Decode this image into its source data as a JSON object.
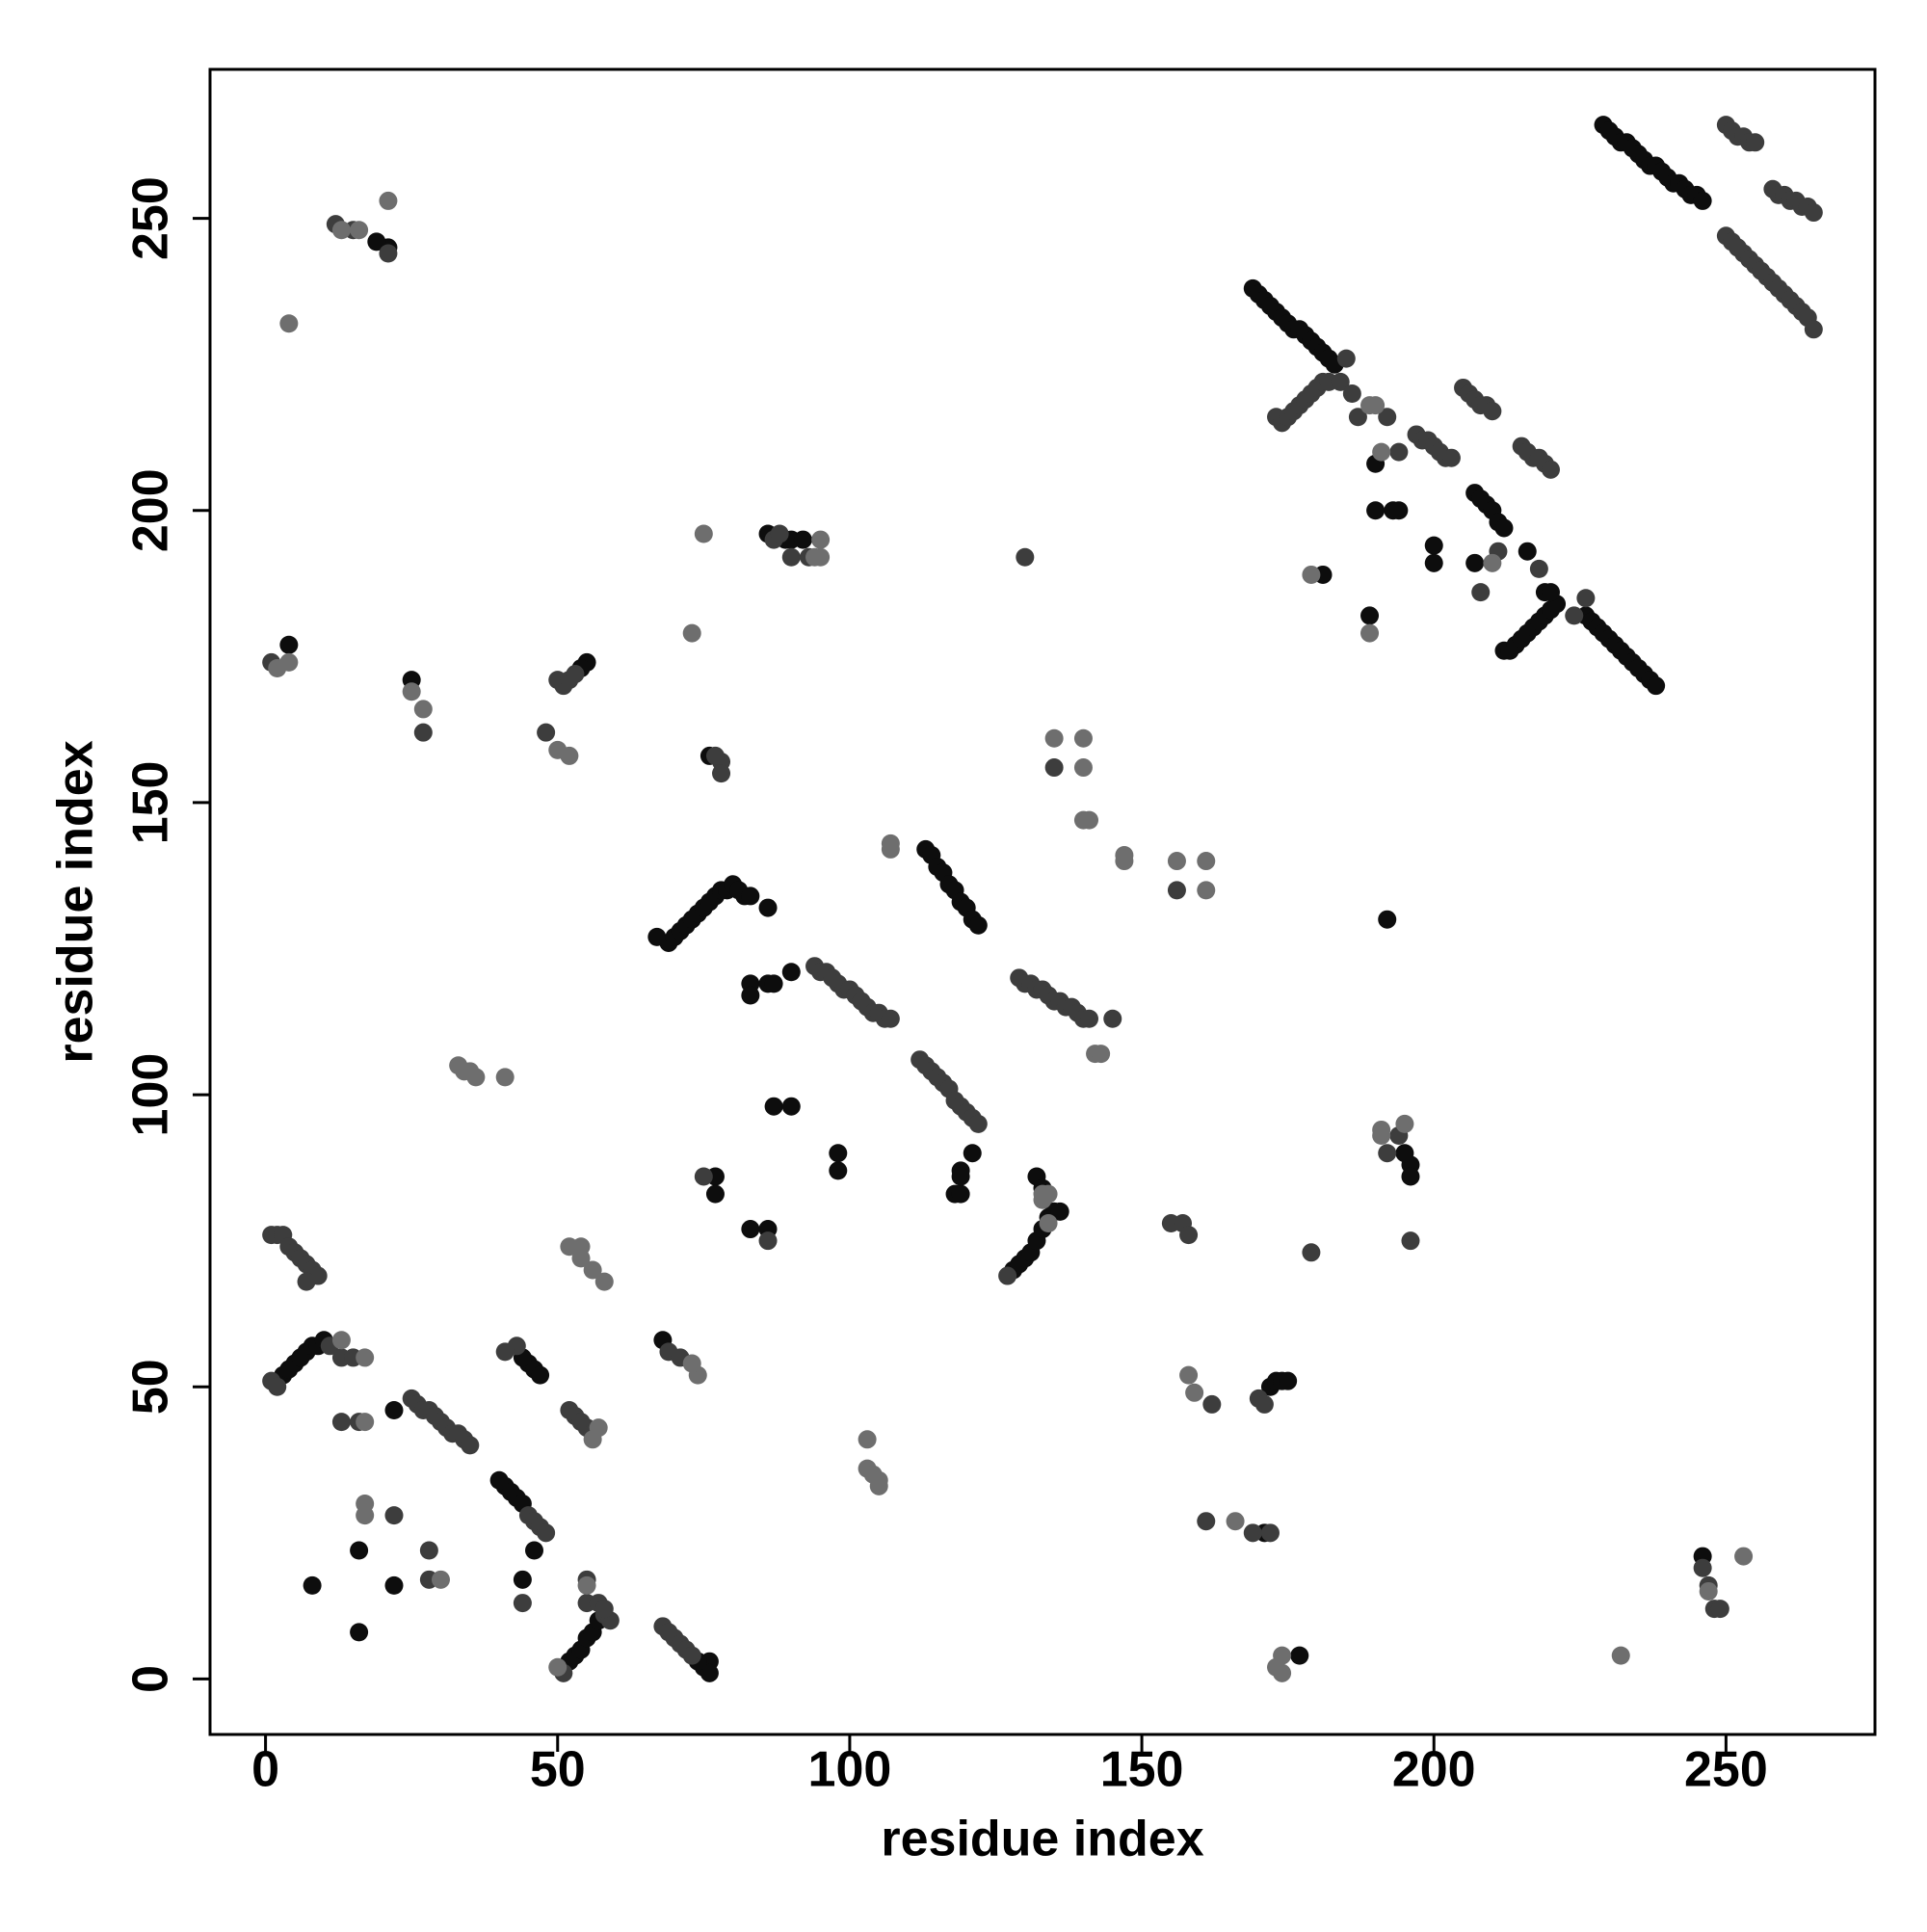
{
  "chart_data": {
    "type": "scatter",
    "x_label": "residue index",
    "y_label": "residue index",
    "xlim": [
      -9.5,
      275.5
    ],
    "ylim": [
      -9.5,
      275.5
    ],
    "xticks": [
      0,
      50,
      100,
      150,
      200,
      250
    ],
    "yticks": [
      0,
      50,
      100,
      150,
      200,
      250
    ],
    "grid": false,
    "series": [
      {
        "color": "#0d0d0d",
        "x": [
          229,
          230,
          231,
          232,
          233,
          234,
          235,
          236,
          237,
          238,
          239,
          240,
          241,
          242,
          243,
          244,
          245,
          246,
          169,
          170,
          171,
          172,
          173,
          174,
          175,
          176,
          177,
          178,
          179,
          180,
          181,
          182,
          183,
          226,
          227,
          228,
          229,
          230,
          231,
          232,
          233,
          234,
          235,
          236,
          237,
          238,
          207,
          208,
          209,
          210,
          211,
          212,
          212,
          213,
          214,
          215,
          216,
          217,
          218,
          219,
          220,
          221,
          190,
          190,
          193,
          194,
          200,
          200,
          207,
          216,
          219,
          220,
          181,
          189,
          192,
          67,
          69,
          70,
          71,
          72,
          73,
          74,
          75,
          76,
          77,
          78,
          79,
          80,
          81,
          82,
          83,
          86,
          83,
          83,
          86,
          87,
          90,
          113,
          114,
          115,
          116,
          117,
          118,
          119,
          120,
          121,
          122,
          118,
          119,
          119,
          119,
          121,
          98,
          98,
          87,
          90,
          77,
          77,
          86,
          83,
          128,
          129,
          130,
          131,
          132,
          133,
          134,
          135,
          132,
          133,
          86,
          89,
          90,
          92,
          76,
          55,
          54,
          4,
          21,
          19,
          25,
          3,
          4,
          5,
          6,
          7,
          8,
          9,
          10,
          40,
          41,
          42,
          43,
          44,
          45,
          46,
          47,
          44,
          52,
          53,
          54,
          55,
          56,
          57,
          75,
          76,
          76,
          68,
          74,
          8,
          16,
          16,
          22,
          44,
          46,
          22,
          171,
          177,
          246,
          172,
          173,
          174,
          175,
          196,
          196,
          195,
          135,
          136
        ],
        "values": [
          266,
          265,
          264,
          263,
          263,
          262,
          261,
          260,
          259,
          259,
          258,
          257,
          256,
          256,
          255,
          254,
          254,
          253,
          238,
          237,
          236,
          235,
          234,
          233,
          232,
          231,
          231,
          230,
          229,
          228,
          227,
          226,
          225,
          182,
          181,
          180,
          179,
          178,
          177,
          176,
          175,
          174,
          173,
          172,
          171,
          170,
          203,
          202,
          201,
          200,
          198,
          197,
          176,
          176,
          177,
          178,
          179,
          180,
          181,
          182,
          183,
          184,
          208,
          200,
          200,
          200,
          194,
          191,
          191,
          193,
          186,
          186,
          189,
          182,
          130,
          127,
          126,
          127,
          128,
          129,
          130,
          131,
          132,
          133,
          134,
          135,
          135,
          136,
          135,
          134,
          134,
          132,
          119,
          117,
          119,
          119,
          121,
          142,
          141,
          139,
          138,
          136,
          135,
          133,
          132,
          130,
          129,
          83,
          83,
          87,
          86,
          90,
          87,
          90,
          98,
          98,
          86,
          83,
          77,
          77,
          70,
          71,
          72,
          73,
          75,
          77,
          79,
          80,
          86,
          84,
          196,
          195,
          195,
          195,
          158,
          174,
          173,
          177,
          245,
          246,
          171,
          52,
          53,
          54,
          55,
          56,
          57,
          57,
          58,
          34,
          33,
          32,
          31,
          30,
          54,
          53,
          52,
          55,
          3,
          4,
          5,
          7,
          8,
          10,
          2,
          3,
          1,
          58,
          3,
          16,
          22,
          8,
          16,
          17,
          22,
          46,
          25,
          4,
          21,
          50,
          51,
          51,
          51,
          88,
          86,
          90,
          80,
          80
        ]
      },
      {
        "color": "#3d3d3d",
        "x": [
          250,
          251,
          252,
          253,
          254,
          255,
          258,
          259,
          260,
          261,
          262,
          263,
          264,
          265,
          250,
          251,
          252,
          253,
          254,
          255,
          256,
          257,
          258,
          259,
          260,
          261,
          262,
          263,
          264,
          265,
          173,
          174,
          175,
          176,
          177,
          178,
          179,
          180,
          181,
          182,
          184,
          197,
          198,
          199,
          200,
          201,
          202,
          203,
          205,
          206,
          207,
          208,
          209,
          210,
          215,
          216,
          217,
          218,
          219,
          220,
          185,
          186,
          187,
          192,
          194,
          208,
          211,
          218,
          224,
          226,
          94,
          95,
          96,
          97,
          98,
          99,
          100,
          101,
          102,
          103,
          104,
          105,
          106,
          112,
          113,
          114,
          115,
          116,
          117,
          118,
          119,
          120,
          121,
          122,
          129,
          130,
          131,
          132,
          133,
          134,
          135,
          136,
          137,
          138,
          139,
          140,
          141,
          107,
          145,
          130,
          127,
          75,
          86,
          87,
          88,
          90,
          93,
          78,
          78,
          77,
          50,
          51,
          52,
          53,
          48,
          27,
          1,
          21,
          12,
          15,
          135,
          156,
          1,
          2,
          3,
          4,
          5,
          6,
          7,
          8,
          9,
          7,
          1,
          2,
          11,
          13,
          15,
          13,
          16,
          25,
          26,
          27,
          28,
          29,
          30,
          31,
          32,
          33,
          34,
          35,
          45,
          46,
          47,
          48,
          43,
          41,
          52,
          53,
          54,
          55,
          56,
          51,
          58,
          59,
          55,
          55,
          57,
          58,
          68,
          69,
          70,
          71,
          72,
          73,
          69,
          71,
          28,
          22,
          28,
          44,
          155,
          157,
          158,
          179,
          196,
          192,
          194,
          170,
          171,
          162,
          161,
          169,
          172,
          246,
          247,
          248,
          249
        ],
        "values": [
          266,
          265,
          264,
          264,
          263,
          263,
          255,
          254,
          254,
          253,
          253,
          252,
          252,
          251,
          247,
          246,
          245,
          244,
          243,
          242,
          241,
          240,
          239,
          238,
          237,
          236,
          235,
          234,
          233,
          231,
          216,
          215,
          216,
          217,
          218,
          219,
          220,
          221,
          222,
          222,
          222,
          213,
          212,
          212,
          211,
          210,
          209,
          209,
          221,
          220,
          219,
          218,
          218,
          217,
          211,
          210,
          209,
          209,
          208,
          207,
          226,
          220,
          216,
          216,
          210,
          186,
          193,
          190,
          182,
          185,
          122,
          121,
          121,
          120,
          119,
          118,
          118,
          117,
          116,
          115,
          114,
          114,
          113,
          106,
          105,
          104,
          103,
          102,
          101,
          99,
          98,
          97,
          96,
          95,
          120,
          119,
          119,
          118,
          118,
          117,
          116,
          116,
          115,
          115,
          114,
          113,
          113,
          113,
          113,
          192,
          69,
          86,
          75,
          195,
          196,
          192,
          192,
          157,
          155,
          158,
          171,
          170,
          171,
          172,
          162,
          162,
          174,
          244,
          249,
          248,
          156,
          135,
          76,
          76,
          76,
          74,
          73,
          72,
          71,
          70,
          69,
          68,
          51,
          50,
          57,
          55,
          55,
          44,
          44,
          48,
          47,
          46,
          46,
          45,
          44,
          43,
          42,
          42,
          41,
          40,
          28,
          27,
          26,
          25,
          57,
          56,
          46,
          45,
          44,
          43,
          42,
          1,
          11,
          10,
          17,
          13,
          13,
          12,
          9,
          8,
          7,
          6,
          5,
          4,
          56,
          55,
          22,
          28,
          17,
          13,
          78,
          78,
          76,
          73,
          75,
          90,
          93,
          48,
          47,
          47,
          27,
          25,
          25,
          19,
          16,
          12,
          12
        ]
      },
      {
        "color": "#6e6e6e",
        "x": [
          189,
          190,
          191,
          210,
          189,
          179,
          107,
          107,
          142,
          143,
          133,
          134,
          133,
          134,
          75,
          94,
          95,
          95,
          73,
          50,
          52,
          25,
          27,
          2,
          4,
          4,
          13,
          16,
          21,
          135,
          140,
          140,
          140,
          141,
          147,
          147,
          156,
          161,
          161,
          33,
          34,
          35,
          36,
          41,
          103,
          103,
          104,
          105,
          105,
          191,
          191,
          195,
          158,
          159,
          166,
          173,
          174,
          174,
          232,
          253,
          247,
          13,
          17,
          17,
          52,
          54,
          54,
          56,
          58,
          57,
          56,
          50,
          55,
          74,
          73,
          17,
          17,
          30
        ],
        "values": [
          218,
          218,
          210,
          191,
          179,
          189,
          143,
          142,
          107,
          107,
          83,
          83,
          82,
          78,
          196,
          192,
          192,
          195,
          179,
          159,
          158,
          169,
          166,
          173,
          174,
          232,
          248,
          248,
          253,
          161,
          161,
          156,
          147,
          147,
          141,
          140,
          140,
          140,
          135,
          105,
          104,
          104,
          103,
          103,
          41,
          36,
          35,
          34,
          33,
          94,
          93,
          95,
          52,
          49,
          27,
          2,
          4,
          1,
          4,
          21,
          15,
          58,
          55,
          44,
          74,
          74,
          72,
          70,
          68,
          43,
          41,
          2,
          16,
          52,
          54,
          30,
          28,
          17
        ]
      }
    ]
  }
}
